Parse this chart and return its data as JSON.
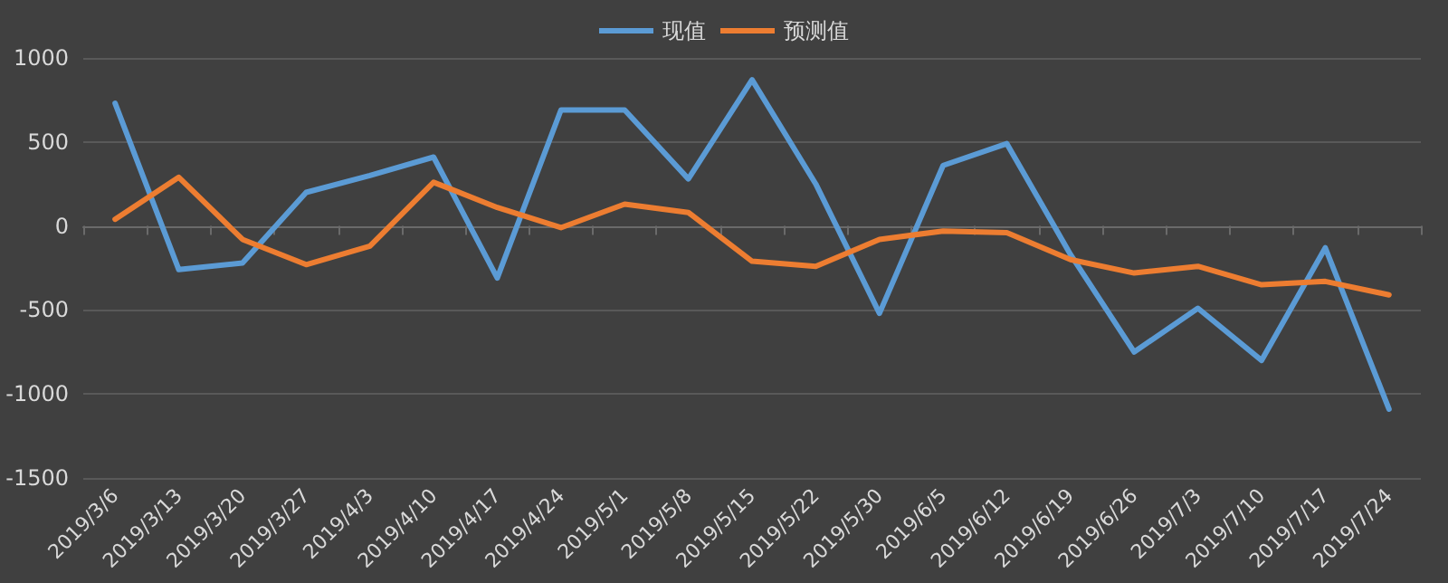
{
  "chart_data": {
    "type": "line",
    "categories": [
      "2019/3/6",
      "2019/3/13",
      "2019/3/20",
      "2019/3/27",
      "2019/4/3",
      "2019/4/10",
      "2019/4/17",
      "2019/4/24",
      "2019/5/1",
      "2019/5/8",
      "2019/5/15",
      "2019/5/22",
      "2019/5/30",
      "2019/6/5",
      "2019/6/12",
      "2019/6/19",
      "2019/6/26",
      "2019/7/3",
      "2019/7/10",
      "2019/7/17",
      "2019/7/24"
    ],
    "series": [
      {
        "name": "现值",
        "color": "#5b9bd5",
        "values": [
          730,
          -260,
          -220,
          200,
          300,
          410,
          -310,
          690,
          690,
          280,
          870,
          250,
          -520,
          360,
          490,
          -170,
          -750,
          -490,
          -800,
          -130,
          -1090
        ]
      },
      {
        "name": "预测值",
        "color": "#ed7d31",
        "values": [
          40,
          290,
          -80,
          -230,
          -120,
          260,
          110,
          -10,
          130,
          80,
          -210,
          -240,
          -80,
          -30,
          -40,
          -200,
          -280,
          -240,
          -350,
          -330,
          -410
        ]
      }
    ],
    "ylim": [
      -1500,
      1000
    ],
    "yticks": [
      -1500,
      -1000,
      -500,
      0,
      500,
      1000
    ],
    "grid": "y",
    "legend": "top",
    "marker": "none",
    "line_style": "solid"
  }
}
